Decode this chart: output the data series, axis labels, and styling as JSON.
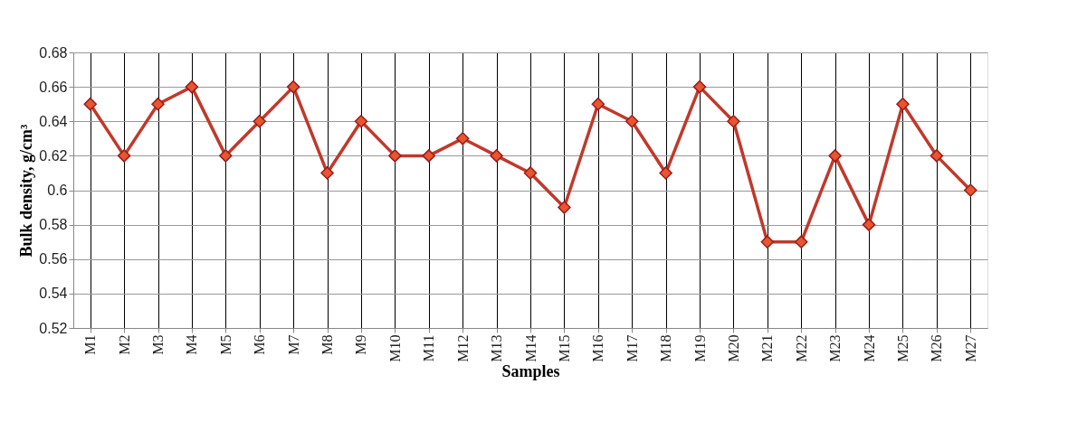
{
  "chart_data": {
    "type": "line",
    "xlabel": "Samples",
    "ylabel": "Bulk density, g/cm³",
    "categories": [
      "M1",
      "M2",
      "M3",
      "M4",
      "M5",
      "M6",
      "M7",
      "M8",
      "M9",
      "M10",
      "M11",
      "M12",
      "M13",
      "M14",
      "M15",
      "M16",
      "M17",
      "M18",
      "M19",
      "M20",
      "M21",
      "M22",
      "M23",
      "M24",
      "M25",
      "M26",
      "M27"
    ],
    "series": [
      {
        "color": "#c0392b",
        "values": [
          0.65,
          0.62,
          0.65,
          0.66,
          0.62,
          0.64,
          0.66,
          0.61,
          0.64,
          0.62,
          0.62,
          0.63,
          0.62,
          0.61,
          0.59,
          0.65,
          0.64,
          0.61,
          0.66,
          0.64,
          0.57,
          0.57,
          0.62,
          0.58,
          0.65,
          0.62,
          0.6
        ]
      }
    ],
    "ylim": [
      0.52,
      0.68
    ],
    "yticks": [
      0.52,
      0.54,
      0.56,
      0.58,
      0.6,
      0.62,
      0.64,
      0.66,
      0.68
    ],
    "grid": true,
    "legend": false,
    "marker": "diamond",
    "line_style": "solid"
  }
}
